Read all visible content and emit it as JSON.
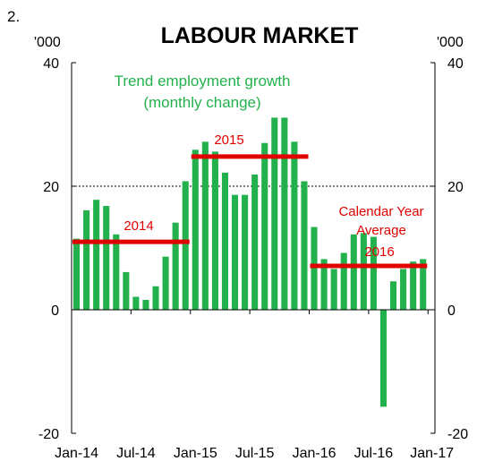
{
  "figure_number": "2.",
  "chart_data": {
    "type": "bar",
    "title": "LABOUR MARKET",
    "unit_left": "'000",
    "unit_right": "'000",
    "ylim": [
      -20,
      40
    ],
    "yticks": [
      "-20",
      "0",
      "20",
      "40"
    ],
    "ytick_values": [
      -20,
      0,
      20,
      40
    ],
    "x_tick_labels": [
      "Jan-14",
      "Jul-14",
      "Jan-15",
      "Jul-15",
      "Jan-16",
      "Jul-16",
      "Jan-17"
    ],
    "gridline_y": 20,
    "series": [
      {
        "name": "Trend employment growth (monthly change)",
        "label_lines": [
          "Trend employment growth",
          "(monthly change)"
        ],
        "color": "#22b14c",
        "months": [
          "Jan-14",
          "Feb-14",
          "Mar-14",
          "Apr-14",
          "May-14",
          "Jun-14",
          "Jul-14",
          "Aug-14",
          "Sep-14",
          "Oct-14",
          "Nov-14",
          "Dec-14",
          "Jan-15",
          "Feb-15",
          "Mar-15",
          "Apr-15",
          "May-15",
          "Jun-15",
          "Jul-15",
          "Aug-15",
          "Sep-15",
          "Oct-15",
          "Nov-15",
          "Dec-15",
          "Jan-16",
          "Feb-16",
          "Mar-16",
          "Apr-16",
          "May-16",
          "Jun-16",
          "Jul-16",
          "Aug-16",
          "Sep-16",
          "Oct-16",
          "Nov-16",
          "Dec-16"
        ],
        "values": [
          11.5,
          16.1,
          17.8,
          16.8,
          12.2,
          6.1,
          2.1,
          1.6,
          3.8,
          8.6,
          14.1,
          20.8,
          25.9,
          27.2,
          25.6,
          22.2,
          18.6,
          18.6,
          21.9,
          27.0,
          31.1,
          31.1,
          27.2,
          20.8,
          13.4,
          8.2,
          6.6,
          9.2,
          12.2,
          12.4,
          11.8,
          -15.7,
          4.6,
          6.6,
          7.8,
          8.2
        ]
      }
    ],
    "averages": {
      "note_lines": [
        "Calendar Year",
        "Average"
      ],
      "color": "#e00000",
      "items": [
        {
          "label": "2014",
          "value": 11.0,
          "from": "Jan-14",
          "to": "Dec-14"
        },
        {
          "label": "2015",
          "value": 24.8,
          "from": "Jan-15",
          "to": "Dec-15"
        },
        {
          "label": "2016",
          "value": 7.1,
          "from": "Jan-16",
          "to": "Dec-16"
        }
      ]
    }
  }
}
